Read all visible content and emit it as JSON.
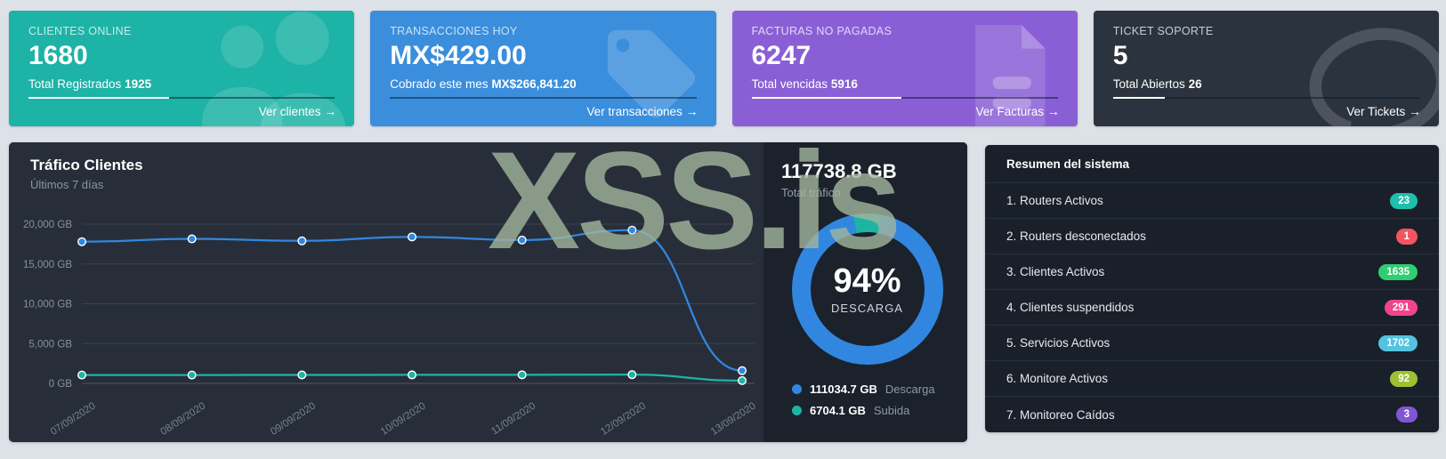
{
  "watermark": "XSS.is",
  "cards": [
    {
      "label": "CLIENTES ONLINE",
      "value": "1680",
      "sub_label": "Total Registrados",
      "sub_value": "1925",
      "link": "Ver clientes",
      "bg": "#1db3a6",
      "progress_pct": 46
    },
    {
      "label": "TRANSACCIONES HOY",
      "value": "MX$429.00",
      "sub_label": "Cobrado este mes",
      "sub_value": "MX$266,841.20",
      "link": "Ver transacciones",
      "bg": "#3a8edc",
      "progress_pct": 0
    },
    {
      "label": "FACTURAS NO PAGADAS",
      "value": "6247",
      "sub_label": "Total vencidas",
      "sub_value": "5916",
      "link": "Ver Facturas",
      "bg": "#8a5fd6",
      "progress_pct": 49
    },
    {
      "label": "TICKET SOPORTE",
      "value": "5",
      "sub_label": "Total Abiertos",
      "sub_value": "26",
      "link": "Ver Tickets",
      "bg": "#2b333e",
      "progress_pct": 17
    }
  ],
  "traffic": {
    "total_value": "117738.8 GB",
    "total_label": "Total tráfico",
    "donut": {
      "percent": "94%",
      "label": "DESCARGA",
      "value": 94
    },
    "legend": [
      {
        "value": "111034.7 GB",
        "label": "Descarga",
        "color": "#3187e0"
      },
      {
        "value": "6704.1 GB",
        "label": "Subida",
        "color": "#1cb5a3"
      }
    ]
  },
  "chart_data": {
    "type": "line",
    "title": "Tráfico Clientes",
    "subtitle": "Últimos 7 días",
    "x": [
      "07/09/2020",
      "08/09/2020",
      "09/09/2020",
      "10/09/2020",
      "11/09/2020",
      "12/09/2020",
      "13/09/2020"
    ],
    "series": [
      {
        "name": "Descarga",
        "color": "#3187e0",
        "values": [
          17800,
          18150,
          17900,
          18400,
          18000,
          19250,
          1600
        ]
      },
      {
        "name": "Subida",
        "color": "#1cb5a3",
        "values": [
          1050,
          1050,
          1060,
          1070,
          1080,
          1100,
          350
        ]
      }
    ],
    "ylim": [
      0,
      20000
    ],
    "yticks": [
      {
        "value": 0,
        "label": "0 GB"
      },
      {
        "value": 5000,
        "label": "5,000 GB"
      },
      {
        "value": 10000,
        "label": "10,000 GB"
      },
      {
        "value": 15000,
        "label": "15,000 GB"
      },
      {
        "value": 20000,
        "label": "20,000 GB"
      }
    ],
    "grid": true,
    "legend_position": "right-panel"
  },
  "summary": {
    "title": "Resumen del sistema",
    "items": [
      {
        "label": "1. Routers Activos",
        "badge": "23",
        "badge_color": "#1fbfad"
      },
      {
        "label": "2. Routers desconectados",
        "badge": "1",
        "badge_color": "#f2555f"
      },
      {
        "label": "3. Clientes Activos",
        "badge": "1635",
        "badge_color": "#2fce71"
      },
      {
        "label": "4. Clientes suspendidos",
        "badge": "291",
        "badge_color": "#f0448c"
      },
      {
        "label": "5. Servicios Activos",
        "badge": "1702",
        "badge_color": "#54c2e0"
      },
      {
        "label": "6. Monitore Activos",
        "badge": "92",
        "badge_color": "#9ec131"
      },
      {
        "label": "7. Monitoreo Caídos",
        "badge": "3",
        "badge_color": "#8156d6"
      }
    ]
  }
}
